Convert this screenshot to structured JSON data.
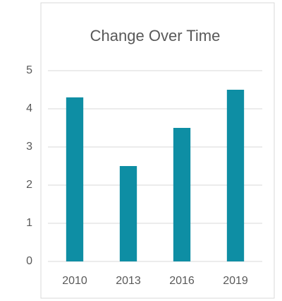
{
  "chart_data": {
    "type": "bar",
    "title": "Change Over Time",
    "categories": [
      "2010",
      "2013",
      "2016",
      "2019"
    ],
    "values": [
      4.3,
      2.5,
      3.5,
      4.5
    ],
    "color": "#0e8ea4",
    "ylim": [
      0,
      5
    ],
    "yticks": [
      0,
      1,
      2,
      3,
      4,
      5
    ],
    "grid": true
  }
}
